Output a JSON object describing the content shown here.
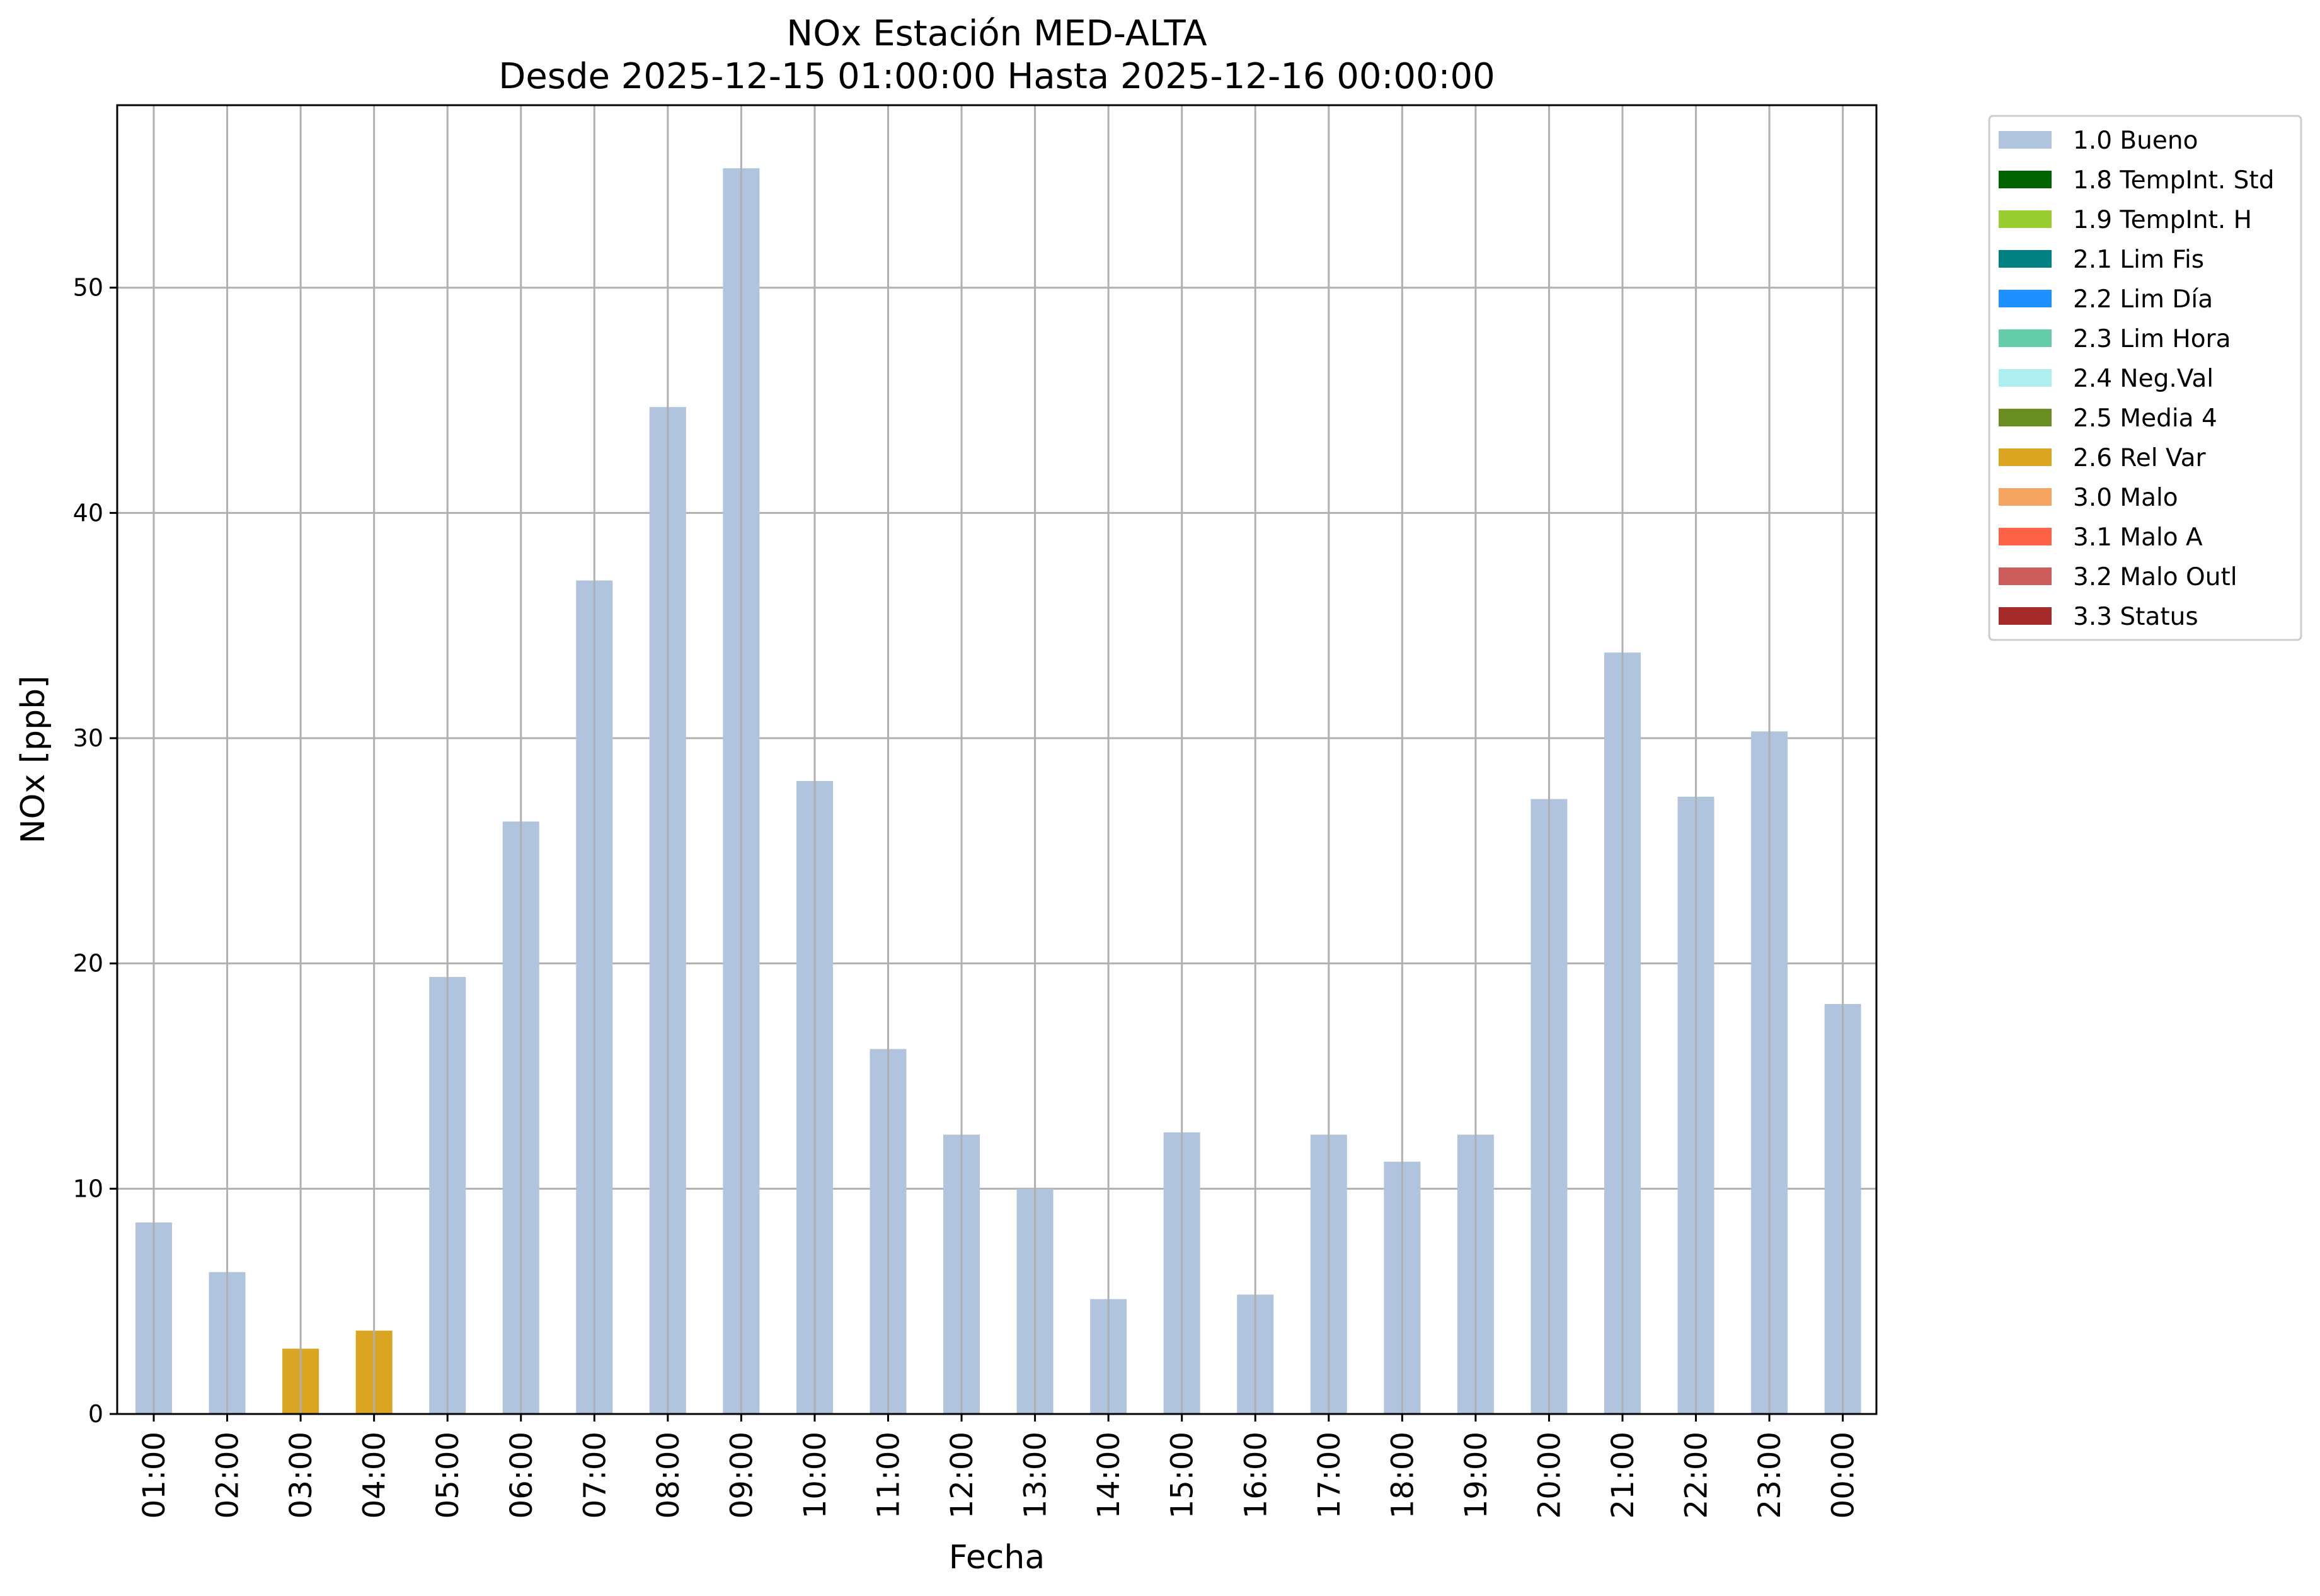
{
  "chart_data": {
    "type": "bar",
    "title": "NOx Estación MED-ALTA",
    "subtitle": "Desde 2025-12-15 01:00:00 Hasta 2025-12-16 00:00:00",
    "xlabel": "Fecha",
    "ylabel": "NOx [ppb]",
    "ylim": [
      0,
      58.1
    ],
    "yticks": [
      0,
      10,
      20,
      30,
      40,
      50
    ],
    "grid": true,
    "legend_position": "outside top-right",
    "categories": [
      "01:00",
      "02:00",
      "03:00",
      "04:00",
      "05:00",
      "06:00",
      "07:00",
      "08:00",
      "09:00",
      "10:00",
      "11:00",
      "12:00",
      "13:00",
      "14:00",
      "15:00",
      "16:00",
      "17:00",
      "18:00",
      "19:00",
      "20:00",
      "21:00",
      "22:00",
      "23:00",
      "00:00"
    ],
    "values": [
      8.5,
      6.3,
      2.9,
      3.7,
      19.4,
      26.3,
      37.0,
      44.7,
      55.3,
      28.1,
      16.2,
      12.4,
      10.0,
      5.1,
      12.5,
      5.3,
      12.4,
      11.2,
      12.4,
      27.3,
      33.8,
      27.4,
      30.3,
      18.2
    ],
    "flags": [
      "1.0 Bueno",
      "1.0 Bueno",
      "2.6 Rel Var",
      "2.6 Rel Var",
      "1.0 Bueno",
      "1.0 Bueno",
      "1.0 Bueno",
      "1.0 Bueno",
      "1.0 Bueno",
      "1.0 Bueno",
      "1.0 Bueno",
      "1.0 Bueno",
      "1.0 Bueno",
      "1.0 Bueno",
      "1.0 Bueno",
      "1.0 Bueno",
      "1.0 Bueno",
      "1.0 Bueno",
      "1.0 Bueno",
      "1.0 Bueno",
      "1.0 Bueno",
      "1.0 Bueno",
      "1.0 Bueno",
      "1.0 Bueno"
    ],
    "legend": [
      {
        "label": "1.0 Bueno",
        "color": "#b0c4de"
      },
      {
        "label": "1.8 TempInt. Std",
        "color": "#006400"
      },
      {
        "label": "1.9 TempInt. H",
        "color": "#9acd32"
      },
      {
        "label": "2.1 Lim Fis",
        "color": "#008080"
      },
      {
        "label": "2.2 Lim Día",
        "color": "#1e90ff"
      },
      {
        "label": "2.3 Lim Hora",
        "color": "#66cdaa"
      },
      {
        "label": "2.4 Neg.Val",
        "color": "#afeeee"
      },
      {
        "label": "2.5 Media 4",
        "color": "#6b8e23"
      },
      {
        "label": "2.6 Rel Var",
        "color": "#daa520"
      },
      {
        "label": "3.0 Malo",
        "color": "#f4a460"
      },
      {
        "label": "3.1 Malo A",
        "color": "#ff6347"
      },
      {
        "label": "3.2 Malo Outl",
        "color": "#cd5c5c"
      },
      {
        "label": "3.3 Status",
        "color": "#a52a2a"
      }
    ]
  }
}
